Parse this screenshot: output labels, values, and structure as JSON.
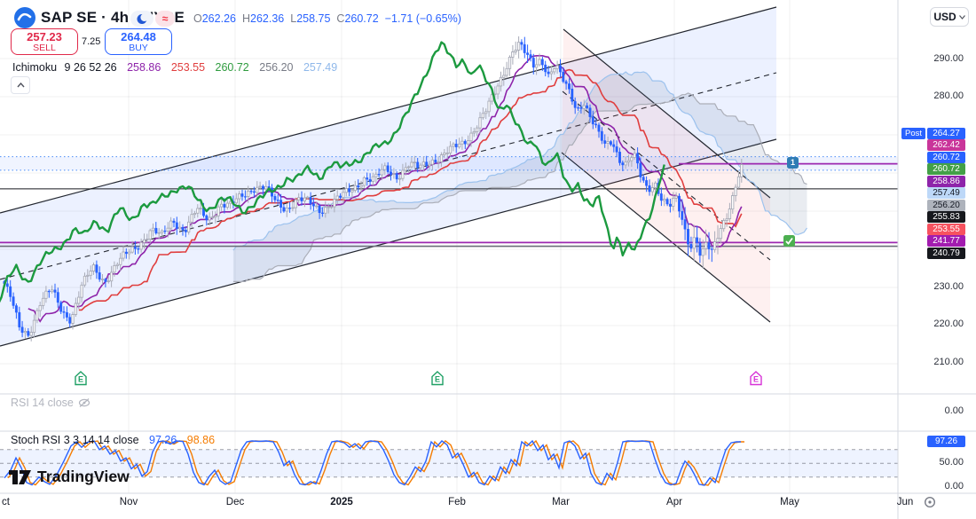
{
  "header": {
    "symbol_title": "SAP SE · 4h · NYSE",
    "ohlc": [
      {
        "k": "O",
        "v": "262.26"
      },
      {
        "k": "H",
        "v": "262.36"
      },
      {
        "k": "L",
        "v": "258.75"
      },
      {
        "k": "C",
        "v": "260.72"
      }
    ],
    "change": "−1.71 (−0.65%)",
    "delay_symbol": "≈"
  },
  "trade_panel": {
    "sell_price": "257.23",
    "sell_label": "SELL",
    "spread": "7.25",
    "buy_price": "264.48",
    "buy_label": "BUY"
  },
  "ichimoku": {
    "name": "Ichimoku",
    "params": "9 26 52 26",
    "values": [
      {
        "text": "258.86",
        "color": "#8E24AA"
      },
      {
        "text": "253.55",
        "color": "#E03E3E"
      },
      {
        "text": "260.72",
        "color": "#2E9B3E"
      },
      {
        "text": "256.20",
        "color": "#787B86"
      },
      {
        "text": "257.49",
        "color": "#8FB8EA"
      }
    ]
  },
  "price_axis": {
    "currency": "USD",
    "post_label": "Post",
    "static_labels": [
      {
        "text": "290.00",
        "y": 66
      },
      {
        "text": "280.00",
        "y": 108
      },
      {
        "text": "230.00",
        "y": 323
      },
      {
        "text": "220.00",
        "y": 365
      },
      {
        "text": "210.00",
        "y": 408
      },
      {
        "text": "0.00",
        "y": 463
      },
      {
        "text": "50.00",
        "y": 521
      },
      {
        "text": "0.00",
        "y": 548
      }
    ],
    "badges": [
      {
        "text": "264.27",
        "y": 150,
        "bg": "#2962FF",
        "fg": "#FFFFFF"
      },
      {
        "text": "262.42",
        "y": 163.5,
        "bg": "#C9359A",
        "fg": "#FFFFFF"
      },
      {
        "text": "260.72",
        "y": 177,
        "bg": "#2962FF",
        "fg": "#FFFFFF"
      },
      {
        "text": "260.72",
        "y": 190.5,
        "bg": "#43A047",
        "fg": "#FFFFFF"
      },
      {
        "text": "258.86",
        "y": 204,
        "bg": "#8E24AA",
        "fg": "#FFFFFF"
      },
      {
        "text": "257.49",
        "y": 217.5,
        "bg": "#BDD8F8",
        "fg": "#131722"
      },
      {
        "text": "256.20",
        "y": 231,
        "bg": "#AEB3BC",
        "fg": "#131722"
      },
      {
        "text": "255.83",
        "y": 244.5,
        "bg": "#16181D",
        "fg": "#FFFFFF"
      },
      {
        "text": "253.55",
        "y": 258,
        "bg": "#F7525F",
        "fg": "#FFFFFF"
      },
      {
        "text": "241.77",
        "y": 271.5,
        "bg": "#A21CAF",
        "fg": "#FFFFFF"
      },
      {
        "text": "240.79",
        "y": 285,
        "bg": "#16181D",
        "fg": "#FFFFFF"
      }
    ],
    "stoch_badge": {
      "text": "97.26",
      "y": 497,
      "bg": "#2962FF",
      "fg": "#FFFFFF"
    }
  },
  "time_axis": {
    "labels": [
      {
        "text": "ct",
        "x": 2,
        "bold": false,
        "noshift": true
      },
      {
        "text": "Nov",
        "x": 145
      },
      {
        "text": "Dec",
        "x": 265
      },
      {
        "text": "2025",
        "x": 385,
        "bold": true
      },
      {
        "text": "Feb",
        "x": 515
      },
      {
        "text": "Mar",
        "x": 632
      },
      {
        "text": "Apr",
        "x": 760
      },
      {
        "text": "May",
        "x": 890
      },
      {
        "text": "Jun",
        "x": 1020
      }
    ]
  },
  "panes": {
    "rsi": {
      "title": "RSI 14 close"
    },
    "stoch": {
      "title": "Stoch RSI 3 3 14 14 close",
      "k_value": "97.26",
      "d_value": "98.86",
      "k_color": "#2962FF",
      "d_color": "#F57C00"
    }
  },
  "logo_text": "TradingView",
  "markers": {
    "earnings": [
      {
        "x": 84,
        "color": "#1FA065",
        "letter": "E"
      },
      {
        "x": 486,
        "color": "#1FA065",
        "letter": "E"
      },
      {
        "x": 845,
        "color": "#D732D7",
        "letter": "E"
      }
    ],
    "alert_badge": {
      "text": "1",
      "x": 887,
      "y": 177,
      "bg": "#2F7CB5"
    },
    "check_badge": {
      "x": 883,
      "y": 265,
      "bg": "#4CAF50"
    }
  },
  "chart_data": {
    "type": "candlestick",
    "symbol": "SAP SE",
    "interval": "4h",
    "exchange": "NYSE",
    "currency": "USD",
    "open": 262.26,
    "high": 262.36,
    "low": 258.75,
    "close": 260.72,
    "change": -1.71,
    "change_pct": -0.65,
    "post_price": 264.27,
    "last_price": 260.72,
    "ylim": [
      207,
      298
    ],
    "price_gridlines": [
      290,
      280,
      270,
      260,
      250,
      240,
      230,
      220,
      210
    ],
    "month_gridlines_x": [
      145,
      265,
      385,
      515,
      632,
      760,
      890
    ],
    "x_months": [
      "Oct",
      "Nov",
      "Dec",
      "2025",
      "Feb",
      "Mar",
      "Apr",
      "May",
      "Jun"
    ],
    "ichimoku_settings": [
      9,
      26,
      52,
      26
    ],
    "ichimoku_values": {
      "tenkan": 258.86,
      "kijun": 253.55,
      "lead1": 260.72,
      "lead2": 256.2,
      "lagging": 257.49
    },
    "bar_step": 3.35,
    "first_x": 5,
    "last_x": 835,
    "close_anchors": [
      [
        5,
        231
      ],
      [
        12,
        227
      ],
      [
        22,
        219
      ],
      [
        32,
        218
      ],
      [
        45,
        226
      ],
      [
        58,
        229
      ],
      [
        70,
        224
      ],
      [
        80,
        222
      ],
      [
        92,
        230
      ],
      [
        105,
        235
      ],
      [
        118,
        232
      ],
      [
        132,
        236
      ],
      [
        145,
        239
      ],
      [
        158,
        242
      ],
      [
        170,
        245
      ],
      [
        182,
        243
      ],
      [
        195,
        248
      ],
      [
        208,
        245
      ],
      [
        222,
        250
      ],
      [
        235,
        248
      ],
      [
        248,
        252
      ],
      [
        260,
        251
      ],
      [
        272,
        254
      ],
      [
        285,
        256.5
      ],
      [
        298,
        256
      ],
      [
        310,
        252.5
      ],
      [
        322,
        251
      ],
      [
        335,
        253
      ],
      [
        348,
        252
      ],
      [
        360,
        250.5
      ],
      [
        372,
        252
      ],
      [
        385,
        253.5
      ],
      [
        398,
        256
      ],
      [
        410,
        259
      ],
      [
        422,
        258
      ],
      [
        435,
        261
      ],
      [
        448,
        259.5
      ],
      [
        460,
        262
      ],
      [
        472,
        261
      ],
      [
        485,
        263.5
      ],
      [
        498,
        264.5
      ],
      [
        510,
        266
      ],
      [
        522,
        268
      ],
      [
        535,
        272
      ],
      [
        548,
        276
      ],
      [
        558,
        281
      ],
      [
        568,
        287
      ],
      [
        578,
        292.5
      ],
      [
        586,
        293.5
      ],
      [
        594,
        290
      ],
      [
        602,
        288
      ],
      [
        610,
        290.5
      ],
      [
        618,
        286
      ],
      [
        626,
        288
      ],
      [
        634,
        284
      ],
      [
        642,
        281
      ],
      [
        650,
        277
      ],
      [
        658,
        279
      ],
      [
        666,
        274
      ],
      [
        674,
        270
      ],
      [
        682,
        267
      ],
      [
        690,
        269
      ],
      [
        698,
        264
      ],
      [
        706,
        262
      ],
      [
        714,
        264.5
      ],
      [
        722,
        259
      ],
      [
        730,
        256
      ],
      [
        738,
        258
      ],
      [
        746,
        253
      ],
      [
        754,
        250.5
      ],
      [
        762,
        253
      ],
      [
        770,
        247
      ],
      [
        778,
        241
      ],
      [
        784,
        244
      ],
      [
        790,
        237.5
      ],
      [
        796,
        241
      ],
      [
        802,
        238.5
      ],
      [
        808,
        243
      ],
      [
        814,
        247
      ],
      [
        820,
        250
      ],
      [
        826,
        254
      ],
      [
        831,
        258
      ],
      [
        835,
        260.7
      ]
    ],
    "levels": [
      {
        "price": 255.83,
        "color": "#16181D",
        "w": 1,
        "from_x": 0
      },
      {
        "price": 240.79,
        "color": "#6A6D78",
        "w": 1.6,
        "from_x": 0
      },
      {
        "price": 241.77,
        "color": "#9C27B0",
        "w": 1.8,
        "from_x": 0
      },
      {
        "price": 262.42,
        "color": "#9C27B0",
        "w": 1.8,
        "from_x": 765
      }
    ],
    "post_band": {
      "low": 260.72,
      "high": 264.27
    },
    "channels": {
      "rising": {
        "upper": [
          [
            0,
            240
          ],
          [
            875,
            8
          ]
        ],
        "lower": [
          [
            0,
            390
          ],
          [
            875,
            157
          ]
        ],
        "mid": [
          [
            0,
            315
          ],
          [
            875,
            82
          ]
        ],
        "fill": "rgba(41,98,255,0.09)",
        "stroke": "#22262F"
      },
      "falling": {
        "upper": [
          [
            635,
            33
          ],
          [
            868,
            223
          ]
        ],
        "lower": [
          [
            633,
            172
          ],
          [
            868,
            363
          ]
        ],
        "mid": [
          [
            634,
            103
          ],
          [
            868,
            293
          ]
        ],
        "fill": "rgba(242,85,85,0.09)",
        "stroke": "#22262F"
      }
    },
    "stoch": {
      "levels": [
        80,
        50,
        20
      ],
      "k": [
        [
          5,
          18
        ],
        [
          12,
          35
        ],
        [
          18,
          62
        ],
        [
          24,
          40
        ],
        [
          30,
          8
        ],
        [
          36,
          3
        ],
        [
          44,
          20
        ],
        [
          50,
          10
        ],
        [
          56,
          4
        ],
        [
          64,
          25
        ],
        [
          72,
          55
        ],
        [
          80,
          88
        ],
        [
          86,
          97
        ],
        [
          92,
          85
        ],
        [
          98,
          96
        ],
        [
          106,
          99
        ],
        [
          112,
          80
        ],
        [
          118,
          88
        ],
        [
          124,
          70
        ],
        [
          130,
          78
        ],
        [
          136,
          55
        ],
        [
          142,
          62
        ],
        [
          148,
          38
        ],
        [
          154,
          48
        ],
        [
          160,
          22
        ],
        [
          166,
          32
        ],
        [
          172,
          75
        ],
        [
          178,
          97
        ],
        [
          184,
          99
        ],
        [
          192,
          92
        ],
        [
          198,
          99
        ],
        [
          206,
          98
        ],
        [
          212,
          70
        ],
        [
          218,
          30
        ],
        [
          224,
          8
        ],
        [
          230,
          3
        ],
        [
          236,
          22
        ],
        [
          242,
          35
        ],
        [
          248,
          12
        ],
        [
          254,
          4
        ],
        [
          260,
          10
        ],
        [
          266,
          45
        ],
        [
          272,
          80
        ],
        [
          278,
          97
        ],
        [
          284,
          99
        ],
        [
          292,
          98
        ],
        [
          300,
          99
        ],
        [
          308,
          97
        ],
        [
          314,
          75
        ],
        [
          320,
          45
        ],
        [
          326,
          55
        ],
        [
          332,
          25
        ],
        [
          338,
          5
        ],
        [
          344,
          3
        ],
        [
          350,
          10
        ],
        [
          356,
          5
        ],
        [
          362,
          35
        ],
        [
          368,
          70
        ],
        [
          374,
          97
        ],
        [
          380,
          99
        ],
        [
          388,
          95
        ],
        [
          394,
          85
        ],
        [
          400,
          93
        ],
        [
          406,
          82
        ],
        [
          412,
          97
        ],
        [
          418,
          99
        ],
        [
          426,
          97
        ],
        [
          432,
          80
        ],
        [
          438,
          55
        ],
        [
          444,
          25
        ],
        [
          450,
          8
        ],
        [
          456,
          3
        ],
        [
          462,
          20
        ],
        [
          468,
          42
        ],
        [
          474,
          32
        ],
        [
          480,
          55
        ],
        [
          486,
          97
        ],
        [
          492,
          86
        ],
        [
          498,
          99
        ],
        [
          504,
          90
        ],
        [
          510,
          62
        ],
        [
          516,
          72
        ],
        [
          522,
          48
        ],
        [
          528,
          20
        ],
        [
          534,
          30
        ],
        [
          540,
          8
        ],
        [
          546,
          3
        ],
        [
          552,
          22
        ],
        [
          558,
          12
        ],
        [
          564,
          42
        ],
        [
          570,
          28
        ],
        [
          576,
          58
        ],
        [
          582,
          45
        ],
        [
          588,
          97
        ],
        [
          594,
          88
        ],
        [
          600,
          99
        ],
        [
          606,
          78
        ],
        [
          612,
          90
        ],
        [
          618,
          58
        ],
        [
          624,
          70
        ],
        [
          630,
          40
        ],
        [
          636,
          95
        ],
        [
          642,
          99
        ],
        [
          648,
          88
        ],
        [
          654,
          60
        ],
        [
          660,
          72
        ],
        [
          666,
          28
        ],
        [
          672,
          8
        ],
        [
          678,
          3
        ],
        [
          684,
          28
        ],
        [
          690,
          14
        ],
        [
          696,
          52
        ],
        [
          702,
          97
        ],
        [
          708,
          99
        ],
        [
          716,
          98
        ],
        [
          724,
          99
        ],
        [
          732,
          97
        ],
        [
          738,
          60
        ],
        [
          744,
          28
        ],
        [
          750,
          8
        ],
        [
          756,
          3
        ],
        [
          762,
          6
        ],
        [
          768,
          38
        ],
        [
          772,
          55
        ],
        [
          778,
          42
        ],
        [
          782,
          28
        ],
        [
          788,
          4
        ],
        [
          794,
          2
        ],
        [
          800,
          18
        ],
        [
          806,
          8
        ],
        [
          812,
          45
        ],
        [
          818,
          80
        ],
        [
          824,
          95
        ],
        [
          830,
          97
        ],
        [
          835,
          97
        ]
      ]
    }
  }
}
